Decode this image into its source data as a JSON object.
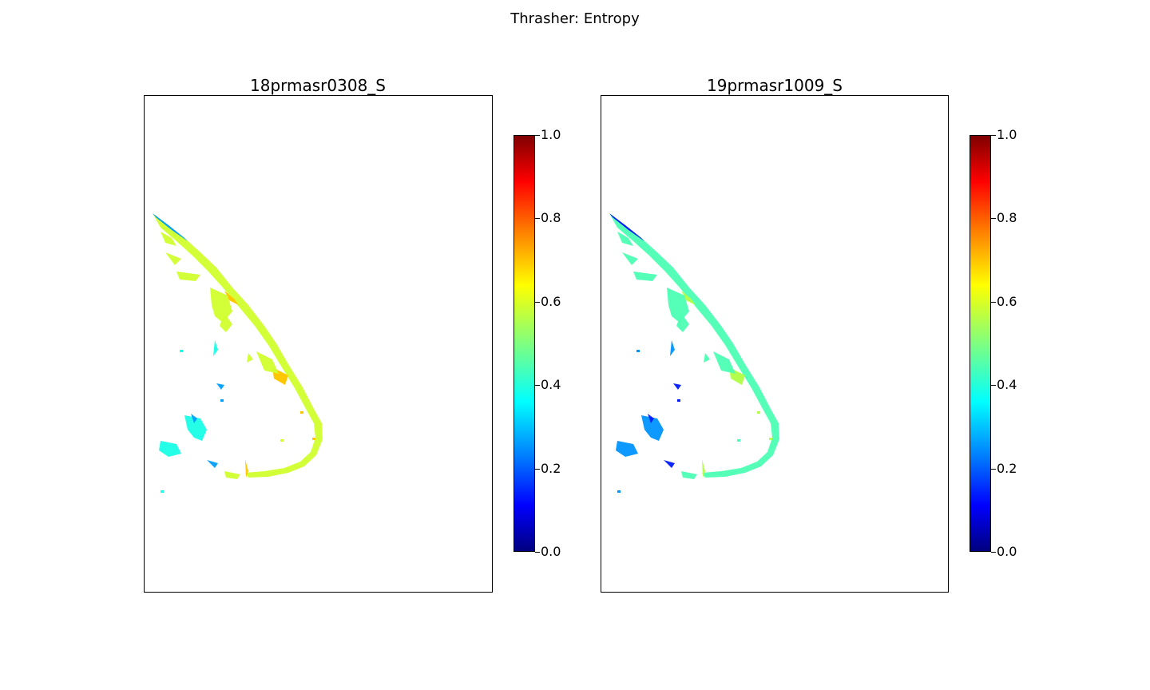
{
  "figure": {
    "suptitle": "Thrasher: Entropy"
  },
  "chart_data": [
    {
      "type": "heatmap",
      "title": "18prmasr0308_S",
      "colormap": "jet",
      "clim": [
        0.0,
        1.0
      ],
      "colorbar_ticks": [
        "0.0",
        "0.2",
        "0.4",
        "0.6",
        "0.8",
        "1.0"
      ],
      "colorbar_tick_values": [
        0.0,
        0.2,
        0.4,
        0.6,
        0.8,
        1.0
      ],
      "dominant_value": 0.58,
      "xticks": "none",
      "yticks": "none"
    },
    {
      "type": "heatmap",
      "title": "19prmasr1009_S",
      "colormap": "jet",
      "clim": [
        0.0,
        1.0
      ],
      "colorbar_ticks": [
        "0.0",
        "0.2",
        "0.4",
        "0.6",
        "0.8",
        "1.0"
      ],
      "colorbar_tick_values": [
        0.0,
        0.2,
        0.4,
        0.6,
        0.8,
        1.0
      ],
      "dominant_value": 0.45,
      "xticks": "none",
      "yticks": "none"
    }
  ]
}
